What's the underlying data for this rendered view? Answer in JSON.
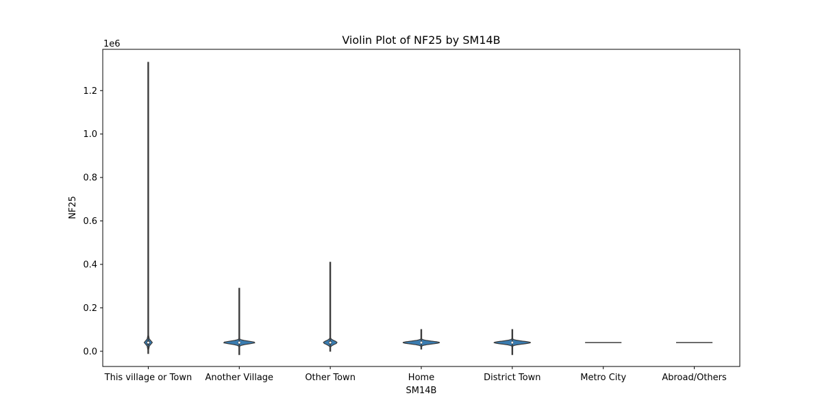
{
  "chart_data": {
    "type": "violin",
    "title": "Violin Plot of NF25 by SM14B",
    "xlabel": "SM14B",
    "ylabel": "NF25",
    "y_offset_label": "1e6",
    "ylim": [
      -0.07,
      1.39
    ],
    "yticks": [
      "0.0",
      "0.2",
      "0.4",
      "0.6",
      "0.8",
      "1.0",
      "1.2"
    ],
    "ytick_values": [
      0.0,
      0.2,
      0.4,
      0.6,
      0.8,
      1.0,
      1.2
    ],
    "grid": false,
    "fill_color": "#3a7cb0",
    "line_color": "#3b3b3b",
    "categories": [
      {
        "label": "This village or Town",
        "min": -0.01,
        "max": 1.33,
        "q1": 0.031,
        "median": 0.04,
        "q3": 0.048,
        "peak": 0.04,
        "width": 0.09
      },
      {
        "label": "Another Village",
        "min": -0.015,
        "max": 0.29,
        "q1": 0.036,
        "median": 0.04,
        "q3": 0.043,
        "peak": 0.04,
        "width": 0.35
      },
      {
        "label": "Other Town",
        "min": 0.0,
        "max": 0.41,
        "q1": 0.033,
        "median": 0.04,
        "q3": 0.047,
        "peak": 0.04,
        "width": 0.15
      },
      {
        "label": "Home",
        "min": 0.01,
        "max": 0.1,
        "q1": 0.037,
        "median": 0.04,
        "q3": 0.043,
        "peak": 0.04,
        "width": 0.4
      },
      {
        "label": "District Town",
        "min": -0.015,
        "max": 0.1,
        "q1": 0.037,
        "median": 0.04,
        "q3": 0.043,
        "peak": 0.04,
        "width": 0.4
      },
      {
        "label": "Metro City",
        "min": 0.04,
        "max": 0.04,
        "q1": 0.04,
        "median": 0.04,
        "q3": 0.04,
        "peak": 0.04,
        "width": 0.4
      },
      {
        "label": "Abroad/Others",
        "min": 0.04,
        "max": 0.04,
        "q1": 0.04,
        "median": 0.04,
        "q3": 0.04,
        "peak": 0.04,
        "width": 0.4
      }
    ]
  }
}
